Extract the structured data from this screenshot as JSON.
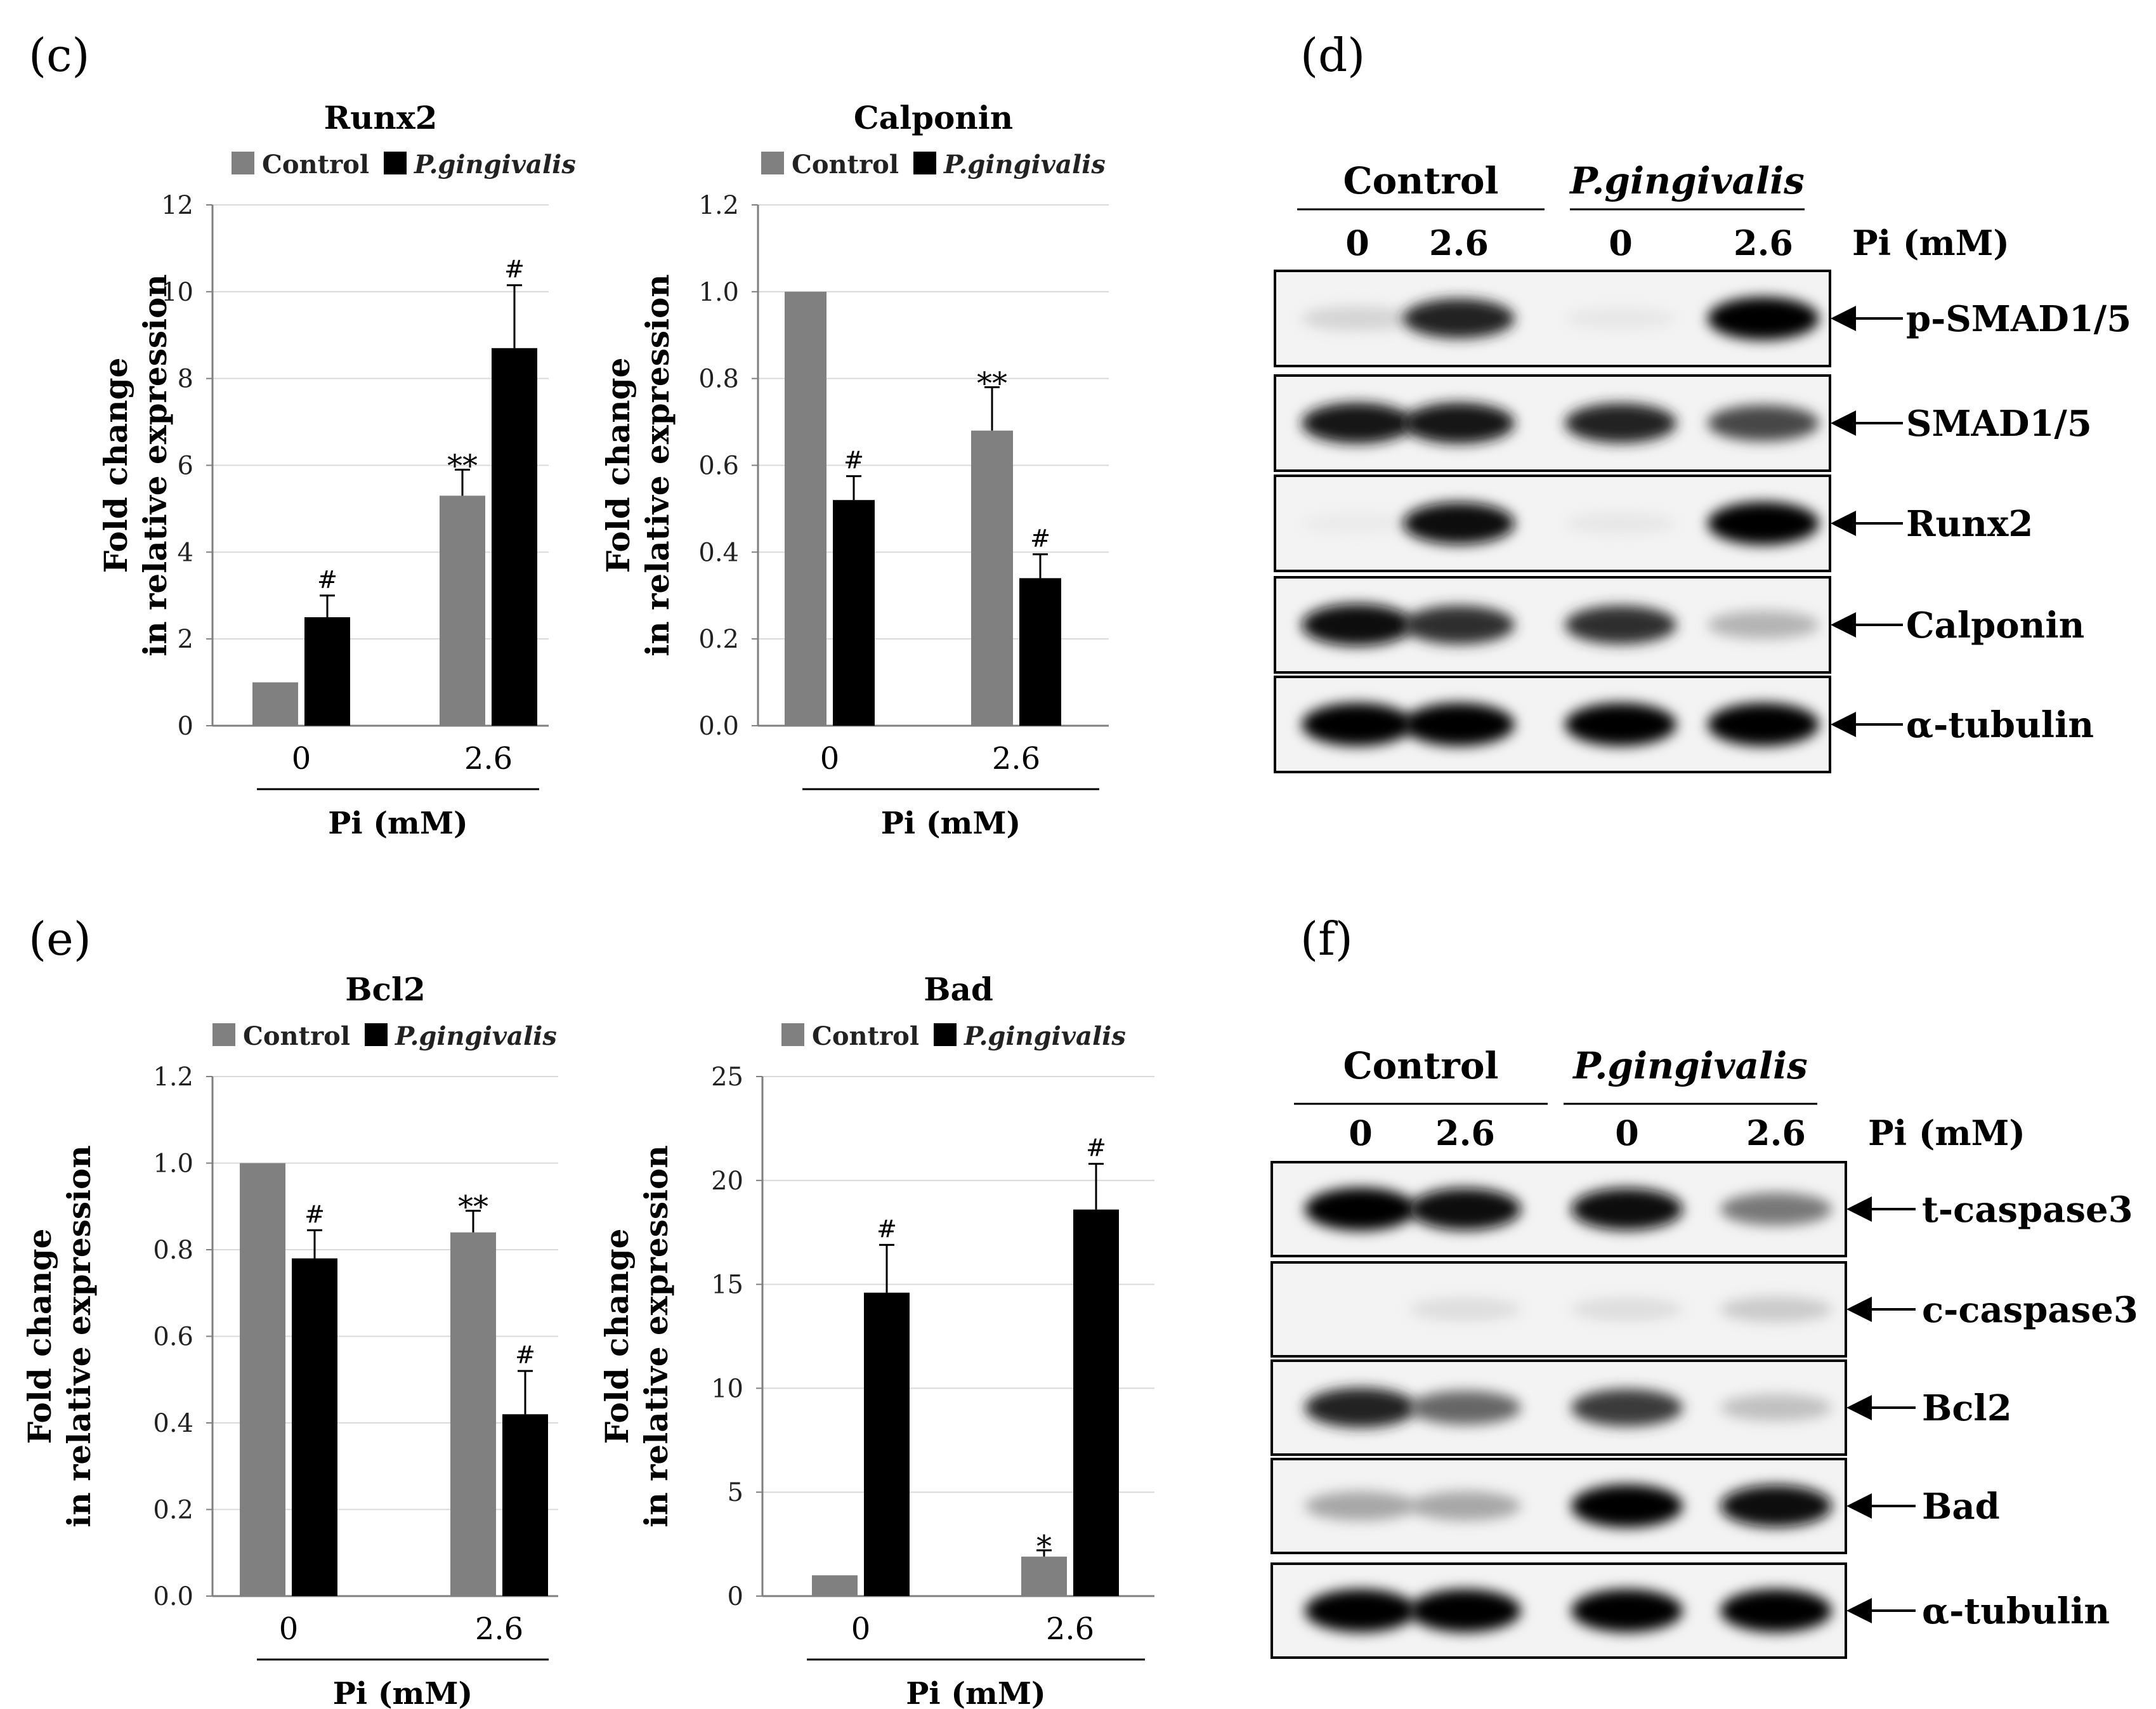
{
  "panels": {
    "c": "(c)",
    "d": "(d)",
    "e": "(e)",
    "f": "(f)"
  },
  "colors": {
    "control": "#808080",
    "treated": "#000000",
    "grid": "#d9d9d9",
    "axis": "#7f7f7f"
  },
  "legend": {
    "control": "Control",
    "treated": "P.gingivalis"
  },
  "xaxis_title": "Pi (mM)",
  "yaxis_title": [
    "Fold change",
    "in relative expression"
  ],
  "chart_data": [
    {
      "type": "bar",
      "panel": "c",
      "title": "Runx2",
      "categories": [
        "0",
        "2.6"
      ],
      "xlabel": "Pi (mM)",
      "ylabel": "Fold change in relative expression",
      "ylim": [
        0,
        12
      ],
      "yticks": [
        "0",
        "2",
        "4",
        "6",
        "8",
        "10",
        "12"
      ],
      "grid": true,
      "legend_position": "top",
      "series": [
        {
          "name": "Control",
          "values": [
            1.0,
            5.3
          ],
          "errors": [
            0,
            0.6
          ],
          "marks": [
            "",
            "**"
          ]
        },
        {
          "name": "P.gingivalis",
          "values": [
            2.5,
            8.7
          ],
          "errors": [
            0.5,
            1.45
          ],
          "marks": [
            "#",
            "#"
          ]
        }
      ]
    },
    {
      "type": "bar",
      "panel": "c",
      "title": "Calponin",
      "categories": [
        "0",
        "2.6"
      ],
      "xlabel": "Pi (mM)",
      "ylabel": "Fold change in relative expression",
      "ylim": [
        0,
        1.2
      ],
      "yticks": [
        "0.0",
        "0.2",
        "0.4",
        "0.6",
        "0.8",
        "1.0",
        "1.2"
      ],
      "grid": true,
      "legend_position": "top",
      "series": [
        {
          "name": "Control",
          "values": [
            1.0,
            0.68
          ],
          "errors": [
            0,
            0.1
          ],
          "marks": [
            "",
            "**"
          ]
        },
        {
          "name": "P.gingivalis",
          "values": [
            0.52,
            0.34
          ],
          "errors": [
            0.055,
            0.055
          ],
          "marks": [
            "#",
            "#"
          ]
        }
      ]
    },
    {
      "type": "bar",
      "panel": "e",
      "title": "Bcl2",
      "categories": [
        "0",
        "2.6"
      ],
      "xlabel": "Pi (mM)",
      "ylabel": "Fold change in relative expression",
      "ylim": [
        0,
        1.2
      ],
      "yticks": [
        "0.0",
        "0.2",
        "0.4",
        "0.6",
        "0.8",
        "1.0",
        "1.2"
      ],
      "grid": true,
      "legend_position": "top",
      "series": [
        {
          "name": "Control",
          "values": [
            1.0,
            0.84
          ],
          "errors": [
            0,
            0.05
          ],
          "marks": [
            "",
            "**"
          ]
        },
        {
          "name": "P.gingivalis",
          "values": [
            0.78,
            0.42
          ],
          "errors": [
            0.065,
            0.1
          ],
          "marks": [
            "#",
            "#"
          ]
        }
      ]
    },
    {
      "type": "bar",
      "panel": "e",
      "title": "Bad",
      "categories": [
        "0",
        "2.6"
      ],
      "xlabel": "Pi (mM)",
      "ylabel": "Fold change in relative expression",
      "ylim": [
        0,
        25
      ],
      "yticks": [
        "0",
        "5",
        "10",
        "15",
        "20",
        "25"
      ],
      "grid": true,
      "legend_position": "top",
      "series": [
        {
          "name": "Control",
          "values": [
            1.0,
            1.9
          ],
          "errors": [
            0,
            0.3
          ],
          "marks": [
            "",
            "*"
          ]
        },
        {
          "name": "P.gingivalis",
          "values": [
            14.6,
            18.6
          ],
          "errors": [
            2.3,
            2.2
          ],
          "marks": [
            "#",
            "#"
          ]
        }
      ]
    }
  ],
  "blots": [
    {
      "panel": "d",
      "groups": [
        "Control",
        "P.gingivalis"
      ],
      "doses": [
        "0",
        "2.6",
        "0",
        "2.6"
      ],
      "dose_label": "Pi (mM)",
      "rows": [
        {
          "label": "p-SMAD1/5",
          "intensity": [
            0.2,
            0.85,
            0.08,
            1.0
          ]
        },
        {
          "label": "SMAD1/5",
          "intensity": [
            0.9,
            0.9,
            0.85,
            0.7
          ]
        },
        {
          "label": "Runx2",
          "intensity": [
            0.05,
            0.95,
            0.08,
            1.0
          ]
        },
        {
          "label": "Calponin",
          "intensity": [
            0.95,
            0.8,
            0.8,
            0.35
          ]
        },
        {
          "label": "α-tubulin",
          "intensity": [
            1.0,
            1.0,
            1.0,
            1.0
          ]
        }
      ]
    },
    {
      "panel": "f",
      "groups": [
        "Control",
        "P.gingivalis"
      ],
      "doses": [
        "0",
        "2.6",
        "0",
        "2.6"
      ],
      "dose_label": "Pi (mM)",
      "rows": [
        {
          "label": "t-caspase3",
          "intensity": [
            1.0,
            0.95,
            0.95,
            0.55
          ]
        },
        {
          "label": "c-caspase3",
          "intensity": [
            0.02,
            0.15,
            0.15,
            0.25
          ]
        },
        {
          "label": "Bcl2",
          "intensity": [
            0.85,
            0.6,
            0.75,
            0.3
          ]
        },
        {
          "label": "Bad",
          "intensity": [
            0.4,
            0.4,
            1.0,
            0.95
          ]
        },
        {
          "label": "α-tubulin",
          "intensity": [
            1.0,
            1.0,
            1.0,
            1.0
          ]
        }
      ]
    }
  ]
}
